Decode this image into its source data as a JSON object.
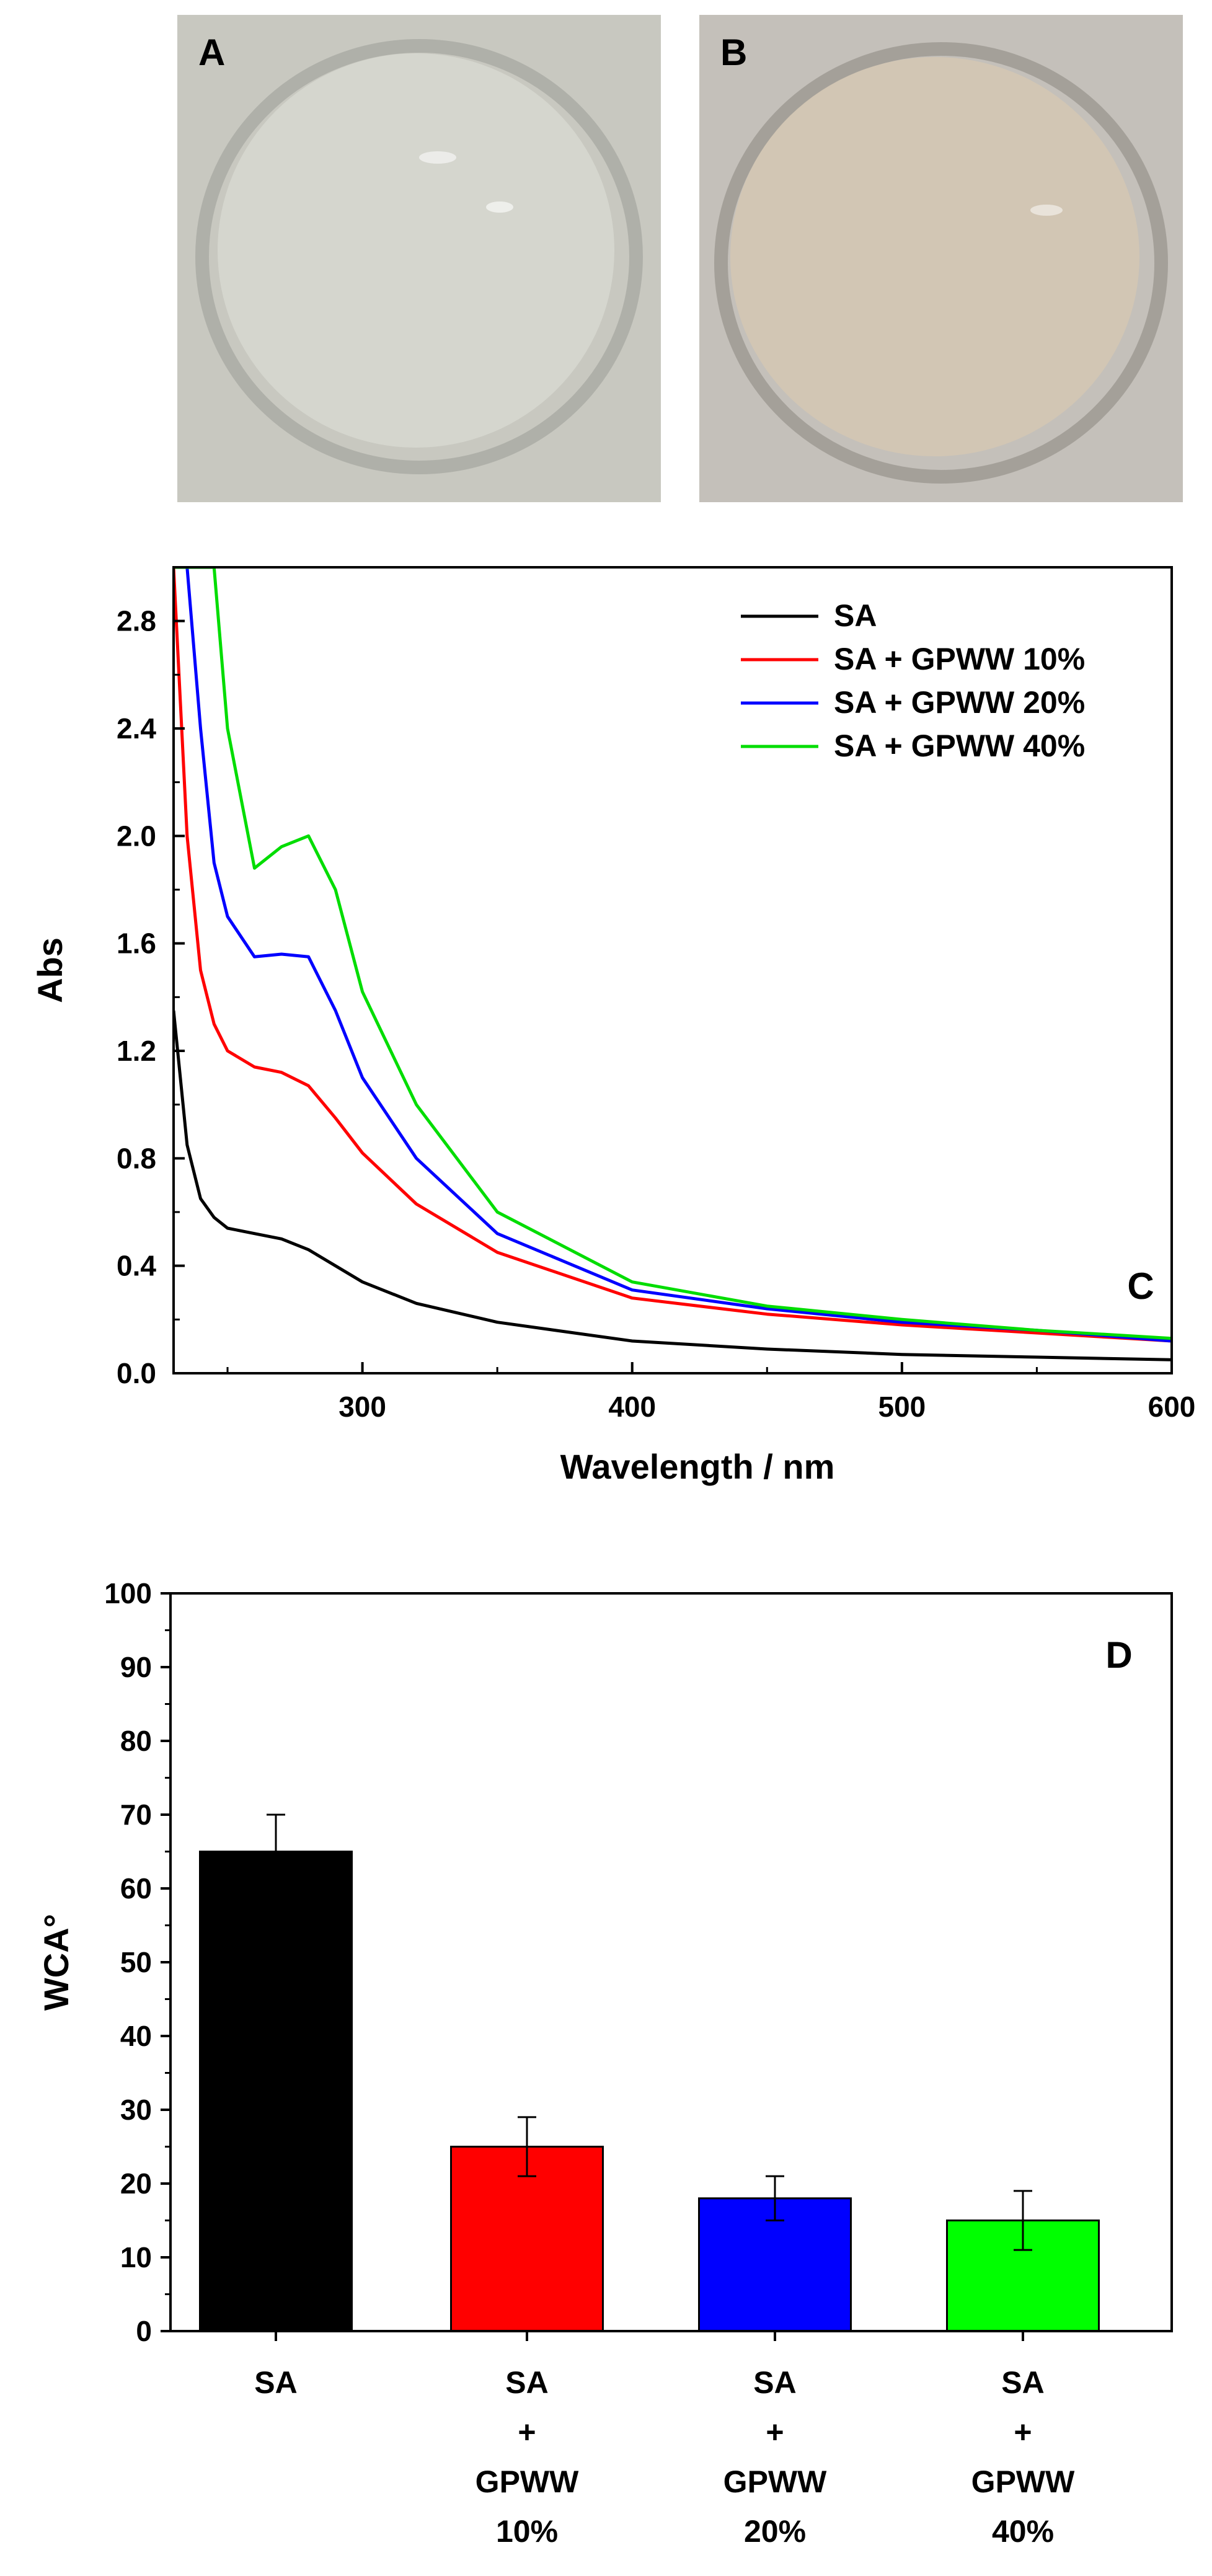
{
  "photos": [
    {
      "label": "A",
      "tint": "#c8c8c0",
      "film": "#d6d7cf"
    },
    {
      "label": "B",
      "tint": "#c4c0ba",
      "film": "#d3c6b3"
    }
  ],
  "chart_data": [
    {
      "type": "line",
      "panel_label": "C",
      "xlabel": "Wavelength / nm",
      "ylabel": "Abs",
      "xlim": [
        230,
        600
      ],
      "ylim": [
        0.0,
        3.0
      ],
      "xticks": [
        300,
        400,
        500,
        600
      ],
      "yticks": [
        0.0,
        0.4,
        0.8,
        1.2,
        1.6,
        2.0,
        2.4,
        2.8
      ],
      "ytick_labels": [
        "0.0",
        "0.4",
        "0.8",
        "1.2",
        "1.6",
        "2.0",
        "2.4",
        "2.8"
      ],
      "legend_position": "top-right",
      "x": [
        230,
        235,
        240,
        245,
        250,
        260,
        270,
        280,
        290,
        300,
        320,
        350,
        400,
        450,
        500,
        550,
        600
      ],
      "series": [
        {
          "name": "SA",
          "color": "#000000",
          "values": [
            1.35,
            0.85,
            0.65,
            0.58,
            0.54,
            0.52,
            0.5,
            0.46,
            0.4,
            0.34,
            0.26,
            0.19,
            0.12,
            0.09,
            0.07,
            0.06,
            0.05
          ]
        },
        {
          "name": "SA + GPWW 10%",
          "color": "#ff0000",
          "values": [
            3.0,
            2.0,
            1.5,
            1.3,
            1.2,
            1.14,
            1.12,
            1.07,
            0.95,
            0.82,
            0.63,
            0.45,
            0.28,
            0.22,
            0.18,
            0.15,
            0.12
          ]
        },
        {
          "name": "SA + GPWW 20%",
          "color": "#0000ff",
          "values": [
            3.0,
            3.0,
            2.4,
            1.9,
            1.7,
            1.55,
            1.56,
            1.55,
            1.35,
            1.1,
            0.8,
            0.52,
            0.31,
            0.24,
            0.19,
            0.16,
            0.12
          ]
        },
        {
          "name": "SA + GPWW 40%",
          "color": "#00dd00",
          "values": [
            3.0,
            3.0,
            3.0,
            3.0,
            2.4,
            1.88,
            1.96,
            2.0,
            1.8,
            1.42,
            1.0,
            0.6,
            0.34,
            0.25,
            0.2,
            0.16,
            0.13
          ]
        }
      ]
    },
    {
      "type": "bar",
      "panel_label": "D",
      "ylabel": "WCA°",
      "ylim": [
        0,
        100
      ],
      "yticks": [
        0,
        10,
        20,
        30,
        40,
        50,
        60,
        70,
        80,
        90,
        100
      ],
      "categories": [
        [
          "SA"
        ],
        [
          "SA",
          "+",
          "GPWW",
          "10%"
        ],
        [
          "SA",
          "+",
          "GPWW",
          "20%"
        ],
        [
          "SA",
          "+",
          "GPWW",
          "40%"
        ]
      ],
      "values": [
        65,
        25,
        18,
        15
      ],
      "errors": [
        5,
        4,
        3,
        4
      ],
      "colors": [
        "#000000",
        "#ff0000",
        "#0000ff",
        "#00ff00"
      ]
    }
  ]
}
